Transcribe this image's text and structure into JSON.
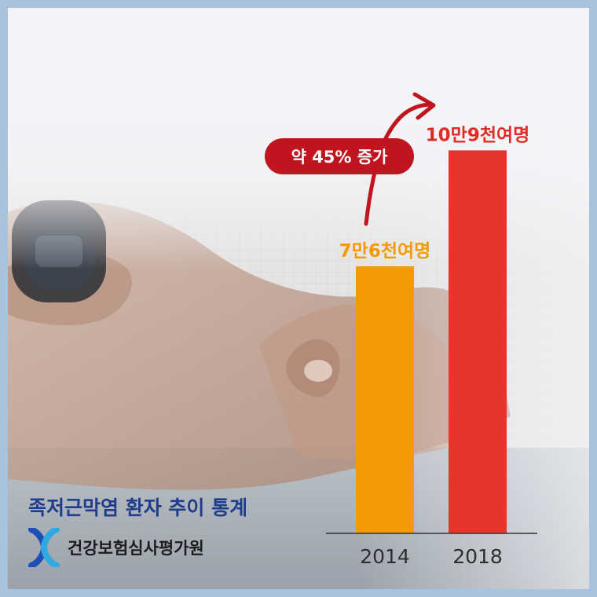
{
  "title": "족저근막염 환자 추이 통계",
  "source": {
    "name": "건강보험심사평가원",
    "logo_icon": "hira-x-logo-icon",
    "logo_colors": [
      "#1e4fb5",
      "#2fa9e0"
    ]
  },
  "annotation": {
    "text": "약 45% 증가",
    "arrow_icon": "curved-arrow-up-icon",
    "color": "#c0151f"
  },
  "colors": {
    "bar_2014": "#f39a06",
    "bar_2018": "#e6352a",
    "label_2014": "#f39a06",
    "label_2018": "#e02c25",
    "title": "#1f3d8a",
    "frame": "#a9c3de"
  },
  "chart_data": {
    "type": "bar",
    "categories": [
      "2014",
      "2018"
    ],
    "values": [
      76000,
      109000
    ],
    "data_labels": [
      "7만6천여명",
      "10만9천여명"
    ],
    "ylim": [
      0,
      150000
    ],
    "grid": false,
    "legend": "none"
  }
}
